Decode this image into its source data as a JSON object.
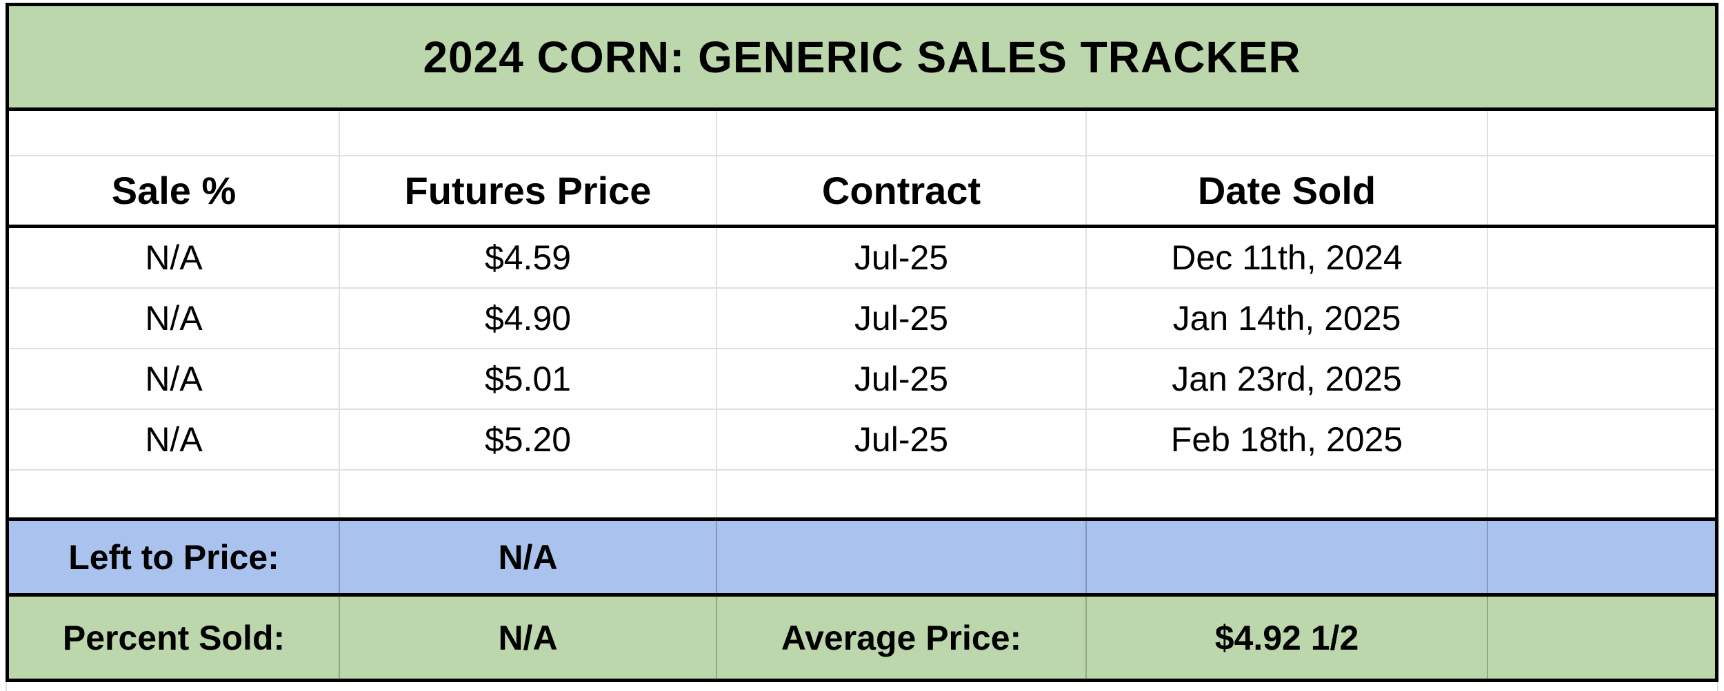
{
  "title": "2024 CORN: GENERIC SALES TRACKER",
  "columns": [
    "Sale %",
    "Futures Price",
    "Contract",
    "Date Sold",
    ""
  ],
  "rows": [
    {
      "sale_pct": "N/A",
      "futures_price": "$4.59",
      "contract": "Jul-25",
      "date_sold": "Dec 11th, 2024"
    },
    {
      "sale_pct": "N/A",
      "futures_price": "$4.90",
      "contract": "Jul-25",
      "date_sold": "Jan 14th, 2025"
    },
    {
      "sale_pct": "N/A",
      "futures_price": "$5.01",
      "contract": "Jul-25",
      "date_sold": "Jan 23rd, 2025"
    },
    {
      "sale_pct": "N/A",
      "futures_price": "$5.20",
      "contract": "Jul-25",
      "date_sold": "Feb 18th, 2025"
    }
  ],
  "summary": {
    "left_to_price_label": "Left to Price:",
    "left_to_price_value": "N/A",
    "percent_sold_label": "Percent Sold:",
    "percent_sold_value": "N/A",
    "average_price_label": "Average Price:",
    "average_price_value": "$4.92 1/2"
  },
  "colors": {
    "green": "#bdd7ac",
    "blue": "#a9c2ee",
    "gridline": "#e0e0e0",
    "border": "#000000"
  }
}
